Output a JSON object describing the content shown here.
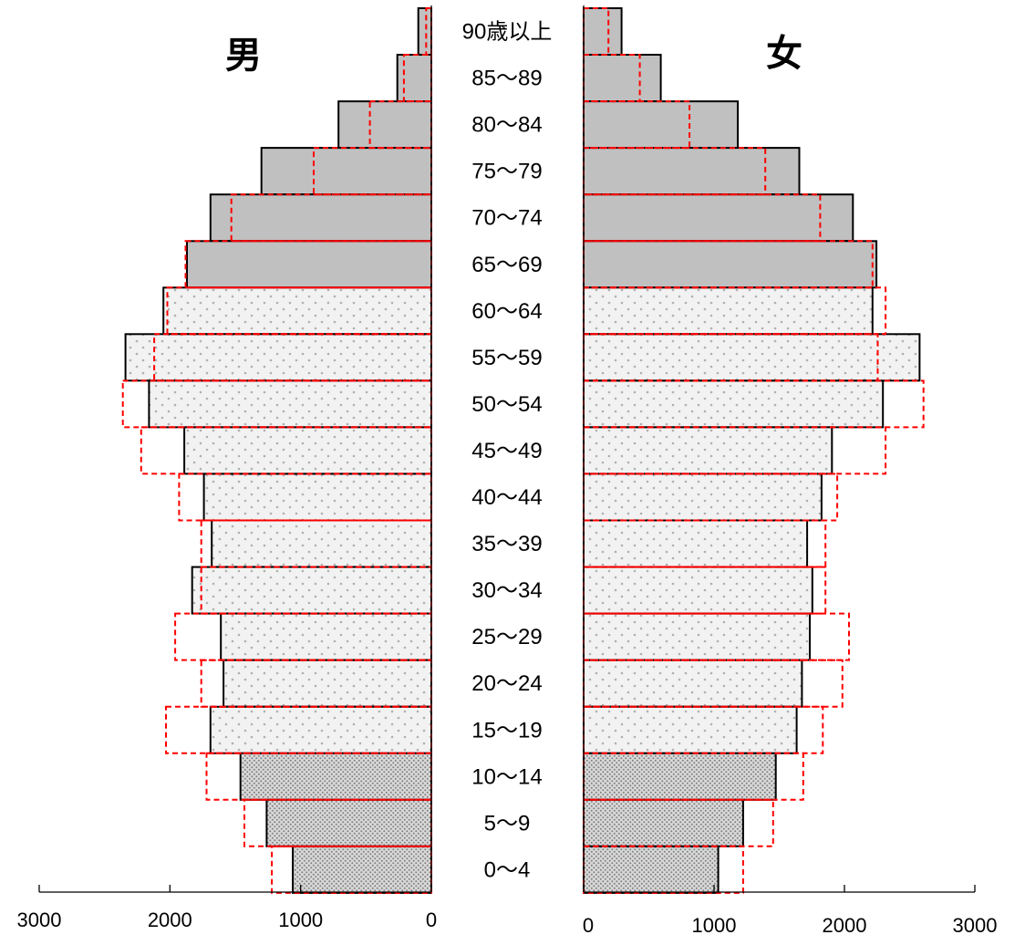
{
  "chart_data": {
    "type": "bar",
    "orientation": "horizontal-pyramid",
    "title": "",
    "labels": {
      "male": "男",
      "female": "女"
    },
    "categories": [
      "90歳以上",
      "85～89",
      "80～84",
      "75～79",
      "70～74",
      "65～69",
      "60～64",
      "55～59",
      "50～54",
      "45～49",
      "40～44",
      "35～39",
      "30～34",
      "25～29",
      "20～24",
      "15～19",
      "10～14",
      "5～9",
      "0～4"
    ],
    "series": [
      {
        "side": "male",
        "style": "solid-black-outline",
        "values": [
          100,
          260,
          710,
          1300,
          1690,
          1870,
          2050,
          2340,
          2160,
          1890,
          1740,
          1680,
          1830,
          1610,
          1590,
          1690,
          1460,
          1260,
          1060
        ]
      },
      {
        "side": "male",
        "style": "dashed-red-outline",
        "values": [
          40,
          210,
          470,
          900,
          1530,
          1880,
          2020,
          2120,
          2360,
          2220,
          1930,
          1760,
          1760,
          1960,
          1760,
          2030,
          1720,
          1430,
          1220
        ]
      },
      {
        "side": "female",
        "style": "solid-black-outline",
        "values": [
          290,
          590,
          1180,
          1650,
          2060,
          2240,
          2210,
          2570,
          2290,
          1900,
          1820,
          1710,
          1750,
          1730,
          1670,
          1630,
          1470,
          1220,
          1030
        ]
      },
      {
        "side": "female",
        "style": "dashed-red-outline",
        "values": [
          190,
          430,
          810,
          1390,
          1810,
          2210,
          2310,
          2250,
          2600,
          2310,
          1940,
          1850,
          1850,
          2030,
          1980,
          1830,
          1680,
          1450,
          1220
        ]
      }
    ],
    "age_band_fill": {
      "65+": "gray",
      "15-64": "dotted-light",
      "0-14": "dotted-dense"
    },
    "x_axis_left": {
      "ticks": [
        "3000",
        "2000",
        "1000",
        "0"
      ],
      "range": [
        0,
        3000
      ]
    },
    "x_axis_right": {
      "ticks": [
        "0",
        "1000",
        "2000",
        "3000"
      ],
      "range": [
        0,
        3000
      ]
    },
    "colors": {
      "solid_outline": "#000000",
      "dashed_outline": "#ff0000",
      "elderly_fill": "#c0c0c0"
    }
  }
}
